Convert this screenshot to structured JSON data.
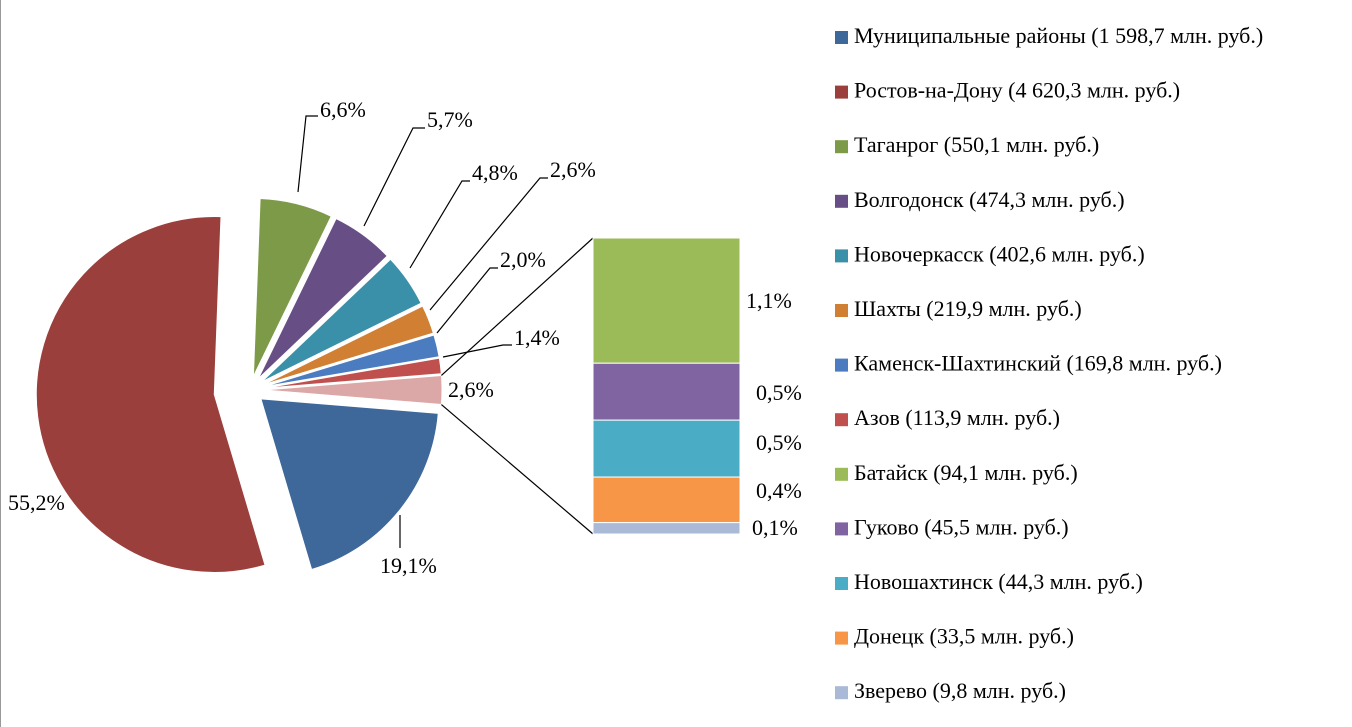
{
  "chart_data": {
    "type": "pie-of-bar",
    "categories": [
      "Муниципальные районы (1 598,7 млн. руб.)",
      "Ростов-на-Дону (4 620,3 млн. руб.)",
      "Таганрог (550,1 млн. руб.)",
      "Волгодонск (474,3 млн. руб.)",
      "Новочеркасск (402,6 млн. руб.)",
      "Шахты (219,9 млн. руб.)",
      "Каменск-Шахтинский (169,8 млн. руб.)",
      "Азов (113,9 млн. руб.)",
      "Батайск (94,1 млн. руб.)",
      "Гуково (45,5 млн. руб.)",
      "Новошахтинск (44,3 млн. руб.)",
      "Донецк (33,5 млн. руб.)",
      "Зверево (9,8 млн. руб.)"
    ],
    "values": [
      19.1,
      55.2,
      6.6,
      5.7,
      4.8,
      2.6,
      2.0,
      1.4,
      1.1,
      0.5,
      0.5,
      0.4,
      0.1
    ],
    "value_labels": [
      "19,1%",
      "55,2%",
      "6,6%",
      "5,7%",
      "4,8%",
      "2,6%",
      "2,0%",
      "1,4%",
      "1,1%",
      "0,5%",
      "0,5%",
      "0,4%",
      "0,1%"
    ],
    "colors": [
      "#3e679a",
      "#9b3f3c",
      "#7d9a48",
      "#674f86",
      "#3a90a8",
      "#d07f33",
      "#4a7cbf",
      "#c0504d",
      "#9bbb59",
      "#8064a2",
      "#4bacc6",
      "#f79646",
      "#a9b9d6"
    ],
    "split_last": 5,
    "other_value": 2.6,
    "other_label": "2,6%",
    "other_color": "#dba8a7"
  }
}
